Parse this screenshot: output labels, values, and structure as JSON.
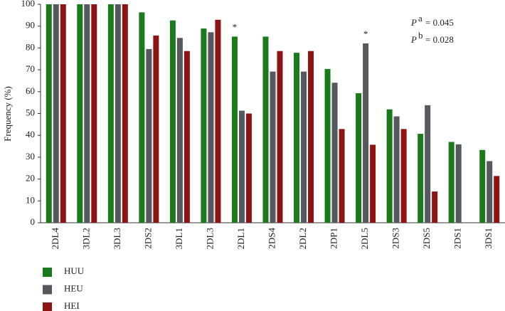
{
  "chart_data": {
    "type": "bar",
    "y_label": "Frequency (%)",
    "categories": [
      "2DL4",
      "3DL2",
      "3DL3",
      "2DS2",
      "3DL1",
      "2DL3",
      "2DL1",
      "2DS4",
      "2DL2",
      "2DP1",
      "2DL5",
      "2DS3",
      "2DS5",
      "2DS1",
      "3DS1"
    ],
    "series": [
      {
        "name": "HUU",
        "color": "#1b7a1b",
        "values": [
          100,
          100,
          100,
          96.3,
          92.6,
          88.9,
          85.2,
          85.2,
          77.8,
          70.4,
          59.3,
          51.9,
          40.7,
          37.0,
          33.3
        ]
      },
      {
        "name": "HEU",
        "color": "#55595e",
        "values": [
          100,
          100,
          100,
          79.5,
          84.6,
          87.2,
          51.3,
          69.2,
          69.2,
          64.1,
          82.1,
          48.7,
          53.8,
          35.9,
          28.2
        ]
      },
      {
        "name": "HEI",
        "color": "#8e1414",
        "values": [
          100,
          100,
          100,
          85.7,
          78.6,
          92.9,
          50.0,
          78.6,
          78.6,
          42.9,
          35.7,
          42.9,
          14.3,
          0,
          21.4
        ]
      }
    ],
    "ylim": [
      0,
      100
    ],
    "yticks": [
      0,
      10,
      20,
      30,
      40,
      50,
      60,
      70,
      80,
      90,
      100
    ],
    "stars": [
      "*",
      "*"
    ],
    "p_values": [
      {
        "symbol": "P",
        "sup": "a",
        "text": "= 0.045"
      },
      {
        "symbol": "P",
        "sup": "b",
        "text": "= 0.028"
      }
    ]
  }
}
